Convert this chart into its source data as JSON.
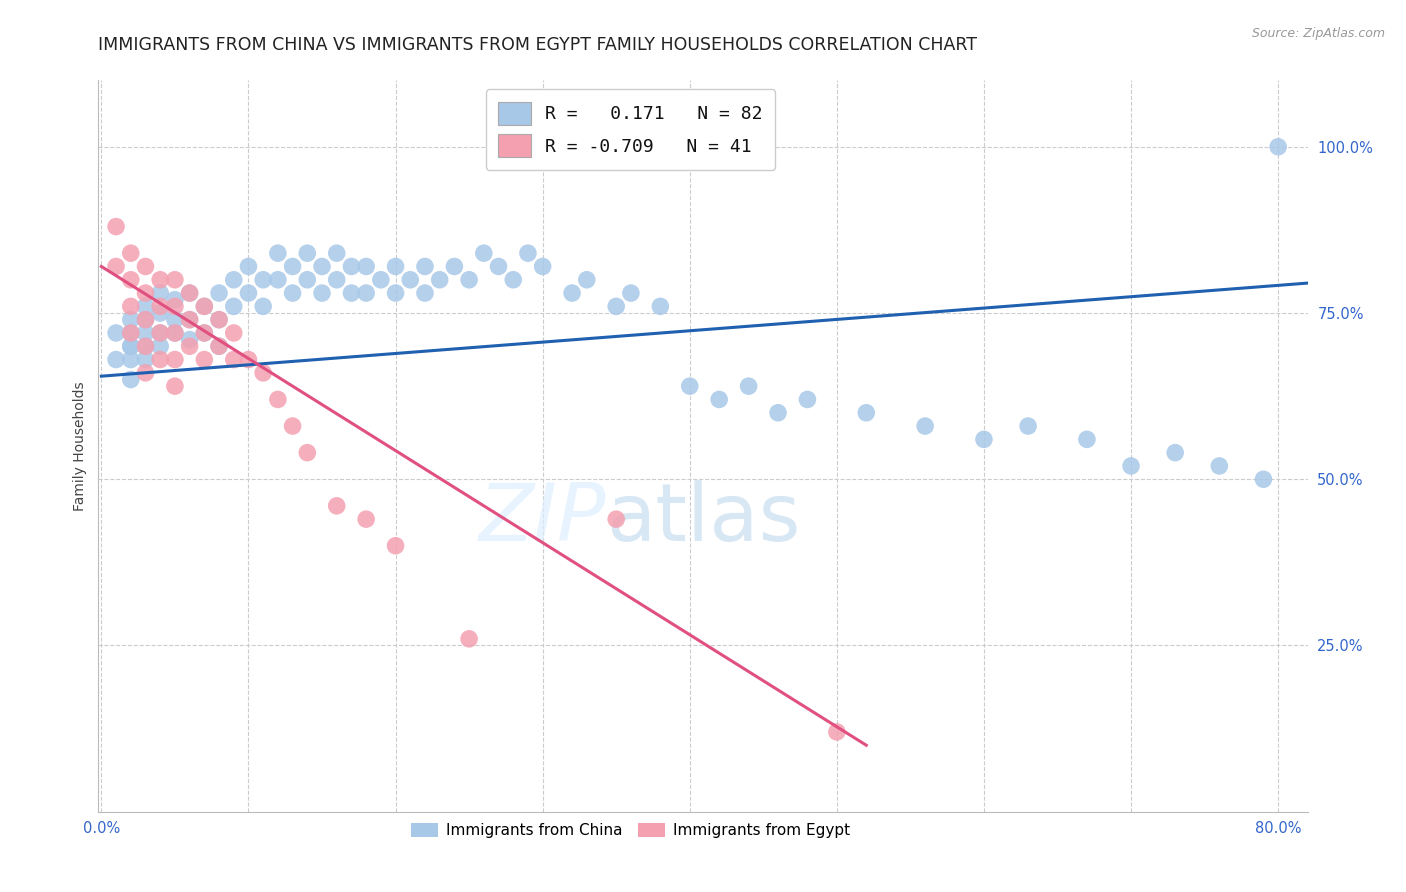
{
  "title": "IMMIGRANTS FROM CHINA VS IMMIGRANTS FROM EGYPT FAMILY HOUSEHOLDS CORRELATION CHART",
  "source": "Source: ZipAtlas.com",
  "ylabel": "Family Households",
  "ytick_labels": [
    "25.0%",
    "50.0%",
    "75.0%",
    "100.0%"
  ],
  "ytick_values": [
    0.25,
    0.5,
    0.75,
    1.0
  ],
  "xlim": [
    -0.002,
    0.82
  ],
  "ylim": [
    0.0,
    1.1
  ],
  "watermark_zip": "ZIP",
  "watermark_atlas": "atlas",
  "china_R": 0.171,
  "china_N": 82,
  "egypt_R": -0.709,
  "egypt_N": 41,
  "china_color": "#a8c8e8",
  "egypt_color": "#f4a0b0",
  "china_line_color": "#2060b0",
  "egypt_line_color": "#e05080",
  "china_trend_x0": 0.0,
  "china_trend_y0": 0.655,
  "china_trend_x1": 0.82,
  "china_trend_y1": 0.795,
  "egypt_trend_x0": 0.0,
  "egypt_trend_y0": 0.82,
  "egypt_trend_x1": 0.52,
  "egypt_trend_y1": 0.1,
  "china_scatter_x": [
    0.01,
    0.01,
    0.02,
    0.02,
    0.02,
    0.02,
    0.02,
    0.02,
    0.03,
    0.03,
    0.03,
    0.03,
    0.03,
    0.04,
    0.04,
    0.04,
    0.04,
    0.05,
    0.05,
    0.05,
    0.06,
    0.06,
    0.06,
    0.07,
    0.07,
    0.08,
    0.08,
    0.08,
    0.09,
    0.09,
    0.1,
    0.1,
    0.11,
    0.11,
    0.12,
    0.12,
    0.13,
    0.13,
    0.14,
    0.14,
    0.15,
    0.15,
    0.16,
    0.16,
    0.17,
    0.17,
    0.18,
    0.18,
    0.19,
    0.2,
    0.2,
    0.21,
    0.22,
    0.22,
    0.23,
    0.24,
    0.25,
    0.26,
    0.27,
    0.28,
    0.29,
    0.3,
    0.32,
    0.33,
    0.35,
    0.36,
    0.38,
    0.4,
    0.42,
    0.44,
    0.46,
    0.48,
    0.52,
    0.56,
    0.6,
    0.63,
    0.67,
    0.7,
    0.73,
    0.76,
    0.79,
    0.8
  ],
  "china_scatter_y": [
    0.68,
    0.72,
    0.7,
    0.72,
    0.68,
    0.65,
    0.7,
    0.74,
    0.72,
    0.7,
    0.68,
    0.74,
    0.76,
    0.72,
    0.75,
    0.78,
    0.7,
    0.74,
    0.77,
    0.72,
    0.74,
    0.78,
    0.71,
    0.76,
    0.72,
    0.78,
    0.74,
    0.7,
    0.8,
    0.76,
    0.82,
    0.78,
    0.8,
    0.76,
    0.84,
    0.8,
    0.82,
    0.78,
    0.84,
    0.8,
    0.82,
    0.78,
    0.84,
    0.8,
    0.82,
    0.78,
    0.82,
    0.78,
    0.8,
    0.82,
    0.78,
    0.8,
    0.82,
    0.78,
    0.8,
    0.82,
    0.8,
    0.84,
    0.82,
    0.8,
    0.84,
    0.82,
    0.78,
    0.8,
    0.76,
    0.78,
    0.76,
    0.64,
    0.62,
    0.64,
    0.6,
    0.62,
    0.6,
    0.58,
    0.56,
    0.58,
    0.56,
    0.52,
    0.54,
    0.52,
    0.5,
    1.0
  ],
  "egypt_scatter_x": [
    0.01,
    0.01,
    0.02,
    0.02,
    0.02,
    0.02,
    0.03,
    0.03,
    0.03,
    0.03,
    0.03,
    0.04,
    0.04,
    0.04,
    0.04,
    0.05,
    0.05,
    0.05,
    0.05,
    0.05,
    0.06,
    0.06,
    0.06,
    0.07,
    0.07,
    0.07,
    0.08,
    0.08,
    0.09,
    0.09,
    0.1,
    0.11,
    0.12,
    0.13,
    0.14,
    0.16,
    0.18,
    0.2,
    0.25,
    0.35,
    0.5
  ],
  "egypt_scatter_y": [
    0.88,
    0.82,
    0.84,
    0.8,
    0.76,
    0.72,
    0.82,
    0.78,
    0.74,
    0.7,
    0.66,
    0.8,
    0.76,
    0.72,
    0.68,
    0.8,
    0.76,
    0.72,
    0.68,
    0.64,
    0.78,
    0.74,
    0.7,
    0.76,
    0.72,
    0.68,
    0.74,
    0.7,
    0.72,
    0.68,
    0.68,
    0.66,
    0.62,
    0.58,
    0.54,
    0.46,
    0.44,
    0.4,
    0.26,
    0.44,
    0.12
  ],
  "grid_color": "#cccccc",
  "background_color": "#ffffff",
  "title_fontsize": 12.5,
  "axis_label_fontsize": 10,
  "tick_fontsize": 10.5,
  "legend_fontsize": 13
}
